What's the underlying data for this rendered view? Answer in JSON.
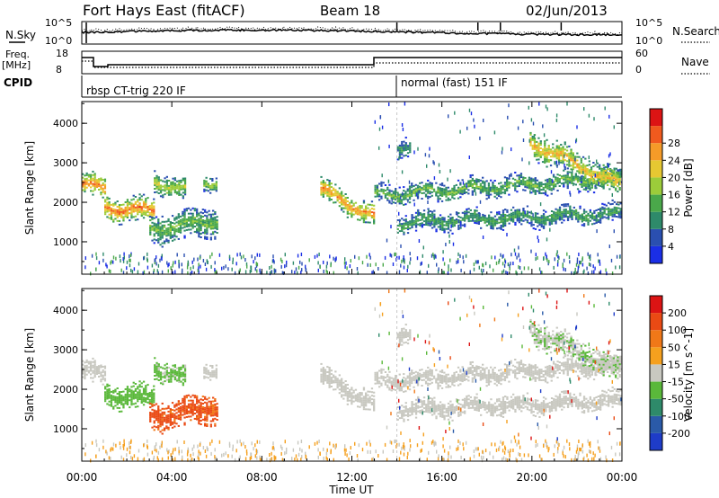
{
  "header": {
    "station": "Fort Hays East (fitACF)",
    "beam": "Beam 18",
    "date": "02/Jun/2013"
  },
  "noise_panel": {
    "left_label": "N.Sky",
    "right_label": "N.Search",
    "left_ticks": [
      "10^5",
      "10^0"
    ],
    "right_ticks": [
      "10^5",
      "10^0"
    ]
  },
  "freq_panel": {
    "left_label_1": "Freq.",
    "left_label_2": "[MHz]",
    "right_label": "Nave",
    "left_ticks": [
      "18",
      "8"
    ],
    "right_ticks": [
      "60",
      "0"
    ]
  },
  "cpid_panel": {
    "label": "CPID",
    "mode1": "rbsp CT-trig 220 IF",
    "mode2": "normal (fast) 151 IF"
  },
  "power_panel": {
    "ylabel": "Slant Range [km]",
    "yticks": [
      "1000",
      "2000",
      "3000",
      "4000"
    ],
    "colorbar_label": "Power [dB]",
    "colorbar_ticks": [
      "4",
      "8",
      "12",
      "16",
      "20",
      "24",
      "28"
    ],
    "colors": [
      "#1a2ee6",
      "#2a4fb0",
      "#2e8a6a",
      "#4aa84a",
      "#9ccc3a",
      "#e6c832",
      "#f59b28",
      "#f05a1e",
      "#dc1414"
    ]
  },
  "velocity_panel": {
    "ylabel": "Slant Range [km]",
    "yticks": [
      "1000",
      "2000",
      "3000",
      "4000"
    ],
    "colorbar_label": "Velocity [m s^-1]",
    "colorbar_ticks": [
      "200",
      "100",
      "50",
      "15",
      "-15",
      "-50",
      "-100",
      "-200"
    ],
    "colors": [
      "#1e3cc8",
      "#2a5aa8",
      "#2e8a6a",
      "#5ab83a",
      "#c8c8c0",
      "#f5a01e",
      "#f07818",
      "#ea4a14",
      "#dc1414"
    ]
  },
  "xaxis": {
    "label": "Time UT",
    "ticks": [
      "00:00",
      "04:00",
      "08:00",
      "12:00",
      "16:00",
      "20:00",
      "00:00"
    ]
  },
  "chart_data": [
    {
      "type": "heatmap",
      "title": "Power [dB]",
      "xlabel": "",
      "ylabel": "Slant Range [km]",
      "xlim_hours": [
        0,
        24
      ],
      "ylim": [
        180,
        4550
      ],
      "clim": [
        0,
        32
      ],
      "echo_regions": [
        {
          "t0": 0.0,
          "t1": 1.0,
          "r_center_start": 2450,
          "r_center_end": 2300,
          "width": 300,
          "peak_db": 26
        },
        {
          "t0": 1.0,
          "t1": 3.2,
          "r_center_start": 1850,
          "r_center_end": 1750,
          "width": 320,
          "peak_db": 26
        },
        {
          "t0": 3.2,
          "t1": 4.6,
          "r_center_start": 2500,
          "r_center_end": 2300,
          "width": 300,
          "peak_db": 18
        },
        {
          "t0": 3.0,
          "t1": 6.0,
          "r_center_start": 1300,
          "r_center_end": 1500,
          "width": 400,
          "peak_db": 14
        },
        {
          "t0": 5.4,
          "t1": 6.0,
          "r_center_start": 2500,
          "r_center_end": 2500,
          "width": 200,
          "peak_db": 16
        },
        {
          "t0": 10.6,
          "t1": 13.0,
          "r_center_start": 2300,
          "r_center_end": 1600,
          "width": 300,
          "peak_db": 24
        },
        {
          "t0": 13.0,
          "t1": 23.9,
          "r_center_start": 2150,
          "r_center_end": 2600,
          "width": 250,
          "peak_db": 14
        },
        {
          "t0": 14.0,
          "t1": 23.9,
          "r_center_start": 1450,
          "r_center_end": 1700,
          "width": 250,
          "peak_db": 12
        },
        {
          "t0": 14.0,
          "t1": 14.6,
          "r_center_start": 3400,
          "r_center_end": 3400,
          "width": 300,
          "peak_db": 10
        },
        {
          "t0": 19.9,
          "t1": 23.9,
          "r_center_start": 3500,
          "r_center_end": 2400,
          "width": 350,
          "peak_db": 22
        }
      ]
    },
    {
      "type": "heatmap",
      "title": "Velocity [m s^-1]",
      "xlabel": "Time UT",
      "ylabel": "Slant Range [km]",
      "xlim_hours": [
        0,
        24
      ],
      "ylim": [
        180,
        4550
      ],
      "clim": [
        -250,
        250
      ],
      "echo_regions": [
        {
          "t0": 0.0,
          "t1": 1.0,
          "r_center_start": 2450,
          "r_center_end": 2300,
          "width": 300,
          "velocity": 0
        },
        {
          "t0": 1.0,
          "t1": 3.2,
          "r_center_start": 1850,
          "r_center_end": 1750,
          "width": 320,
          "velocity": -60
        },
        {
          "t0": 3.2,
          "t1": 4.6,
          "r_center_start": 2500,
          "r_center_end": 2300,
          "width": 300,
          "velocity": -40
        },
        {
          "t0": 3.0,
          "t1": 6.0,
          "r_center_start": 1300,
          "r_center_end": 1500,
          "width": 400,
          "velocity": 150
        },
        {
          "t0": 5.4,
          "t1": 6.0,
          "r_center_start": 2500,
          "r_center_end": 2500,
          "width": 200,
          "velocity": 0
        },
        {
          "t0": 10.6,
          "t1": 13.0,
          "r_center_start": 2300,
          "r_center_end": 1600,
          "width": 300,
          "velocity": 0
        },
        {
          "t0": 13.0,
          "t1": 23.9,
          "r_center_start": 2150,
          "r_center_end": 2600,
          "width": 250,
          "velocity": 0
        },
        {
          "t0": 14.0,
          "t1": 23.9,
          "r_center_start": 1450,
          "r_center_end": 1700,
          "width": 250,
          "velocity": 0
        },
        {
          "t0": 14.0,
          "t1": 14.6,
          "r_center_start": 3400,
          "r_center_end": 3400,
          "width": 300,
          "velocity": 0
        },
        {
          "t0": 19.9,
          "t1": 23.9,
          "r_center_start": 3500,
          "r_center_end": 2400,
          "width": 350,
          "velocity": -20
        }
      ]
    }
  ]
}
